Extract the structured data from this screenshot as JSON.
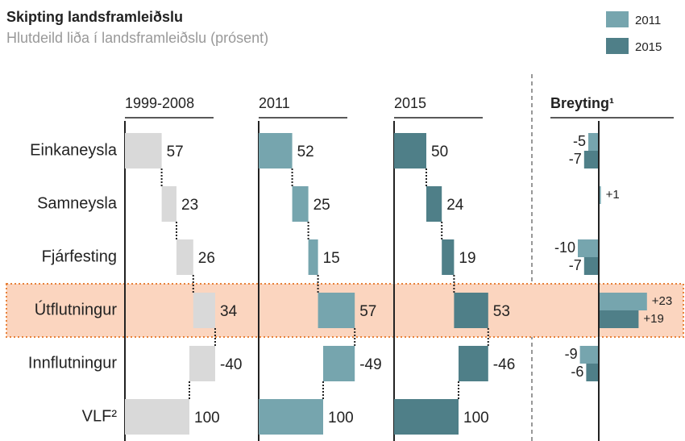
{
  "title": "Skipting landsframleiðslu",
  "subtitle": "Hlutdeild liða í landsframleiðslu (prósent)",
  "highlight": 3,
  "chart_data": [
    {
      "type": "waterfall",
      "title": "1999-2008",
      "categories": [
        "Einkaneysla",
        "Samneysla",
        "Fjárfesting",
        "Útflutningur",
        "Innflutningur",
        "VLF²"
      ],
      "values": [
        57,
        23,
        26,
        34,
        -40,
        100
      ],
      "color": "#d9d9d9"
    },
    {
      "type": "waterfall",
      "title": "2011",
      "values": [
        52,
        25,
        15,
        57,
        -49,
        100
      ],
      "color": "#76a5ae"
    },
    {
      "type": "waterfall",
      "title": "2015",
      "values": [
        50,
        24,
        19,
        53,
        -46,
        100
      ],
      "color": "#4f7f88"
    },
    {
      "type": "bar",
      "title": "Breyting¹",
      "series": [
        {
          "name": "2011",
          "color": "#76a5ae",
          "values": [
            -5,
            1,
            -10,
            23,
            -9,
            null
          ],
          "value_labels": [
            "-5",
            "+1",
            "-10",
            "+23",
            "-9",
            null
          ]
        },
        {
          "name": "2015",
          "color": "#4f7f88",
          "values": [
            -7,
            null,
            -7,
            19,
            -6,
            null
          ],
          "value_labels": [
            "-7",
            null,
            "-7",
            "+19",
            "-6",
            null
          ]
        }
      ]
    }
  ]
}
